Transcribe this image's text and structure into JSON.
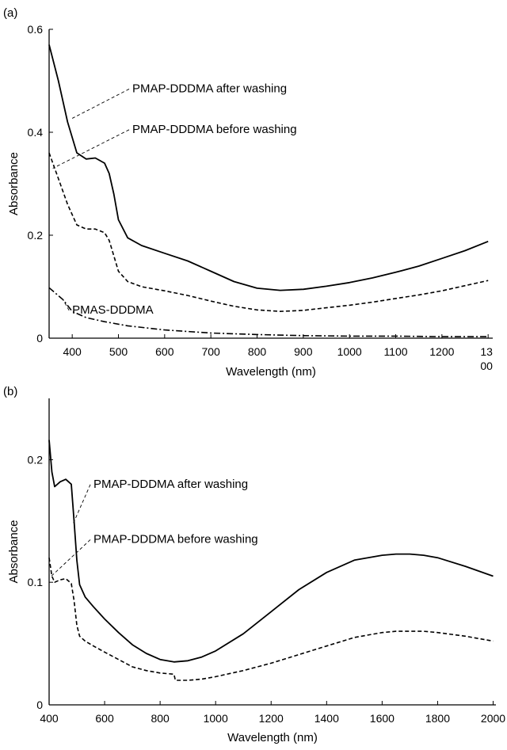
{
  "chart_data": [
    {
      "panel": "(a)",
      "type": "line",
      "xlabel": "Wavelength (nm)",
      "ylabel": "Absorbance",
      "xlim": [
        350,
        1310
      ],
      "ylim": [
        0,
        0.6
      ],
      "xticks": [
        400,
        500,
        600,
        700,
        800,
        900,
        1000,
        1100,
        1200
      ],
      "xtick_last": [
        "13",
        "00"
      ],
      "yticks": [
        0,
        0.2,
        0.4,
        0.6
      ],
      "ytick_labels": [
        "0",
        "0.2",
        "0.4",
        "0.6"
      ],
      "series": [
        {
          "name": "PMAP-DDDMA after washing",
          "style": "solid",
          "x": [
            350,
            370,
            390,
            410,
            430,
            450,
            470,
            480,
            490,
            500,
            520,
            550,
            600,
            650,
            700,
            750,
            800,
            850,
            900,
            950,
            1000,
            1050,
            1100,
            1150,
            1200,
            1250,
            1300
          ],
          "y": [
            0.57,
            0.5,
            0.42,
            0.36,
            0.348,
            0.35,
            0.34,
            0.32,
            0.28,
            0.23,
            0.195,
            0.18,
            0.165,
            0.15,
            0.13,
            0.11,
            0.097,
            0.093,
            0.095,
            0.101,
            0.108,
            0.117,
            0.128,
            0.14,
            0.155,
            0.17,
            0.188
          ]
        },
        {
          "name": "PMAP-DDDMA before washing",
          "style": "dashed",
          "x": [
            350,
            370,
            390,
            410,
            430,
            450,
            470,
            480,
            490,
            500,
            520,
            550,
            600,
            650,
            700,
            750,
            800,
            850,
            900,
            950,
            1000,
            1050,
            1100,
            1150,
            1200,
            1250,
            1300
          ],
          "y": [
            0.36,
            0.31,
            0.26,
            0.22,
            0.212,
            0.212,
            0.205,
            0.19,
            0.16,
            0.13,
            0.11,
            0.1,
            0.092,
            0.083,
            0.072,
            0.062,
            0.055,
            0.052,
            0.054,
            0.059,
            0.064,
            0.07,
            0.077,
            0.084,
            0.092,
            0.102,
            0.112
          ]
        },
        {
          "name": "PMAS-DDDMA",
          "style": "dashdot",
          "x": [
            350,
            380,
            400,
            430,
            470,
            520,
            600,
            700,
            800,
            900,
            1000,
            1100,
            1200,
            1300
          ],
          "y": [
            0.098,
            0.075,
            0.052,
            0.04,
            0.032,
            0.024,
            0.016,
            0.01,
            0.007,
            0.005,
            0.004,
            0.004,
            0.003,
            0.003
          ]
        }
      ],
      "annotations": [
        {
          "text": "PMAP-DDDMA after washing",
          "x": 530,
          "y": 0.487,
          "tx": 400,
          "ty": 0.427
        },
        {
          "text": "PMAP-DDDMA before washing",
          "x": 530,
          "y": 0.408,
          "tx": 358,
          "ty": 0.33
        },
        {
          "text": "PMAS-DDDMA",
          "x": 400,
          "y": 0.057,
          "tx": 380,
          "ty": 0.075
        }
      ]
    },
    {
      "panel": "(b)",
      "type": "line",
      "xlabel": "Wavelength (nm)",
      "ylabel": "Absorbance",
      "xlim": [
        400,
        2010
      ],
      "ylim": [
        0,
        0.25
      ],
      "xticks": [
        400,
        600,
        800,
        1000,
        1200,
        1400,
        1600,
        1800,
        2000
      ],
      "yticks": [
        0,
        0.1,
        0.2
      ],
      "ytick_labels": [
        "0",
        "0.1",
        "0.2"
      ],
      "series": [
        {
          "name": "PMAP-DDDMA after washing",
          "style": "solid",
          "x": [
            400,
            410,
            420,
            440,
            460,
            480,
            490,
            500,
            510,
            530,
            560,
            600,
            650,
            700,
            750,
            800,
            850,
            900,
            950,
            1000,
            1100,
            1200,
            1300,
            1400,
            1500,
            1600,
            1650,
            1700,
            1750,
            1800,
            1900,
            2000
          ],
          "y": [
            0.216,
            0.19,
            0.178,
            0.182,
            0.184,
            0.18,
            0.15,
            0.118,
            0.098,
            0.088,
            0.08,
            0.07,
            0.059,
            0.049,
            0.042,
            0.037,
            0.035,
            0.036,
            0.039,
            0.044,
            0.058,
            0.076,
            0.094,
            0.108,
            0.118,
            0.122,
            0.123,
            0.123,
            0.122,
            0.12,
            0.113,
            0.105
          ]
        },
        {
          "name": "PMAP-DDDMA before washing",
          "style": "dashed",
          "x": [
            400,
            410,
            420,
            440,
            460,
            480,
            490,
            500,
            510,
            530,
            560,
            600,
            650,
            700,
            750,
            800,
            850,
            855,
            900,
            950,
            1000,
            1100,
            1200,
            1300,
            1400,
            1500,
            1600,
            1650,
            1700,
            1750,
            1800,
            1900,
            2000
          ],
          "y": [
            0.12,
            0.105,
            0.1,
            0.102,
            0.103,
            0.099,
            0.085,
            0.065,
            0.056,
            0.052,
            0.048,
            0.043,
            0.037,
            0.031,
            0.028,
            0.026,
            0.025,
            0.02,
            0.02,
            0.021,
            0.023,
            0.028,
            0.034,
            0.041,
            0.048,
            0.055,
            0.059,
            0.06,
            0.06,
            0.06,
            0.059,
            0.056,
            0.052
          ]
        }
      ],
      "annotations": [
        {
          "text": "PMAP-DDDMA after washing",
          "x": 560,
          "y": 0.181,
          "tx": 487,
          "ty": 0.148
        },
        {
          "text": "PMAP-DDDMA before washing",
          "x": 560,
          "y": 0.136,
          "tx": 408,
          "ty": 0.105
        }
      ]
    }
  ]
}
